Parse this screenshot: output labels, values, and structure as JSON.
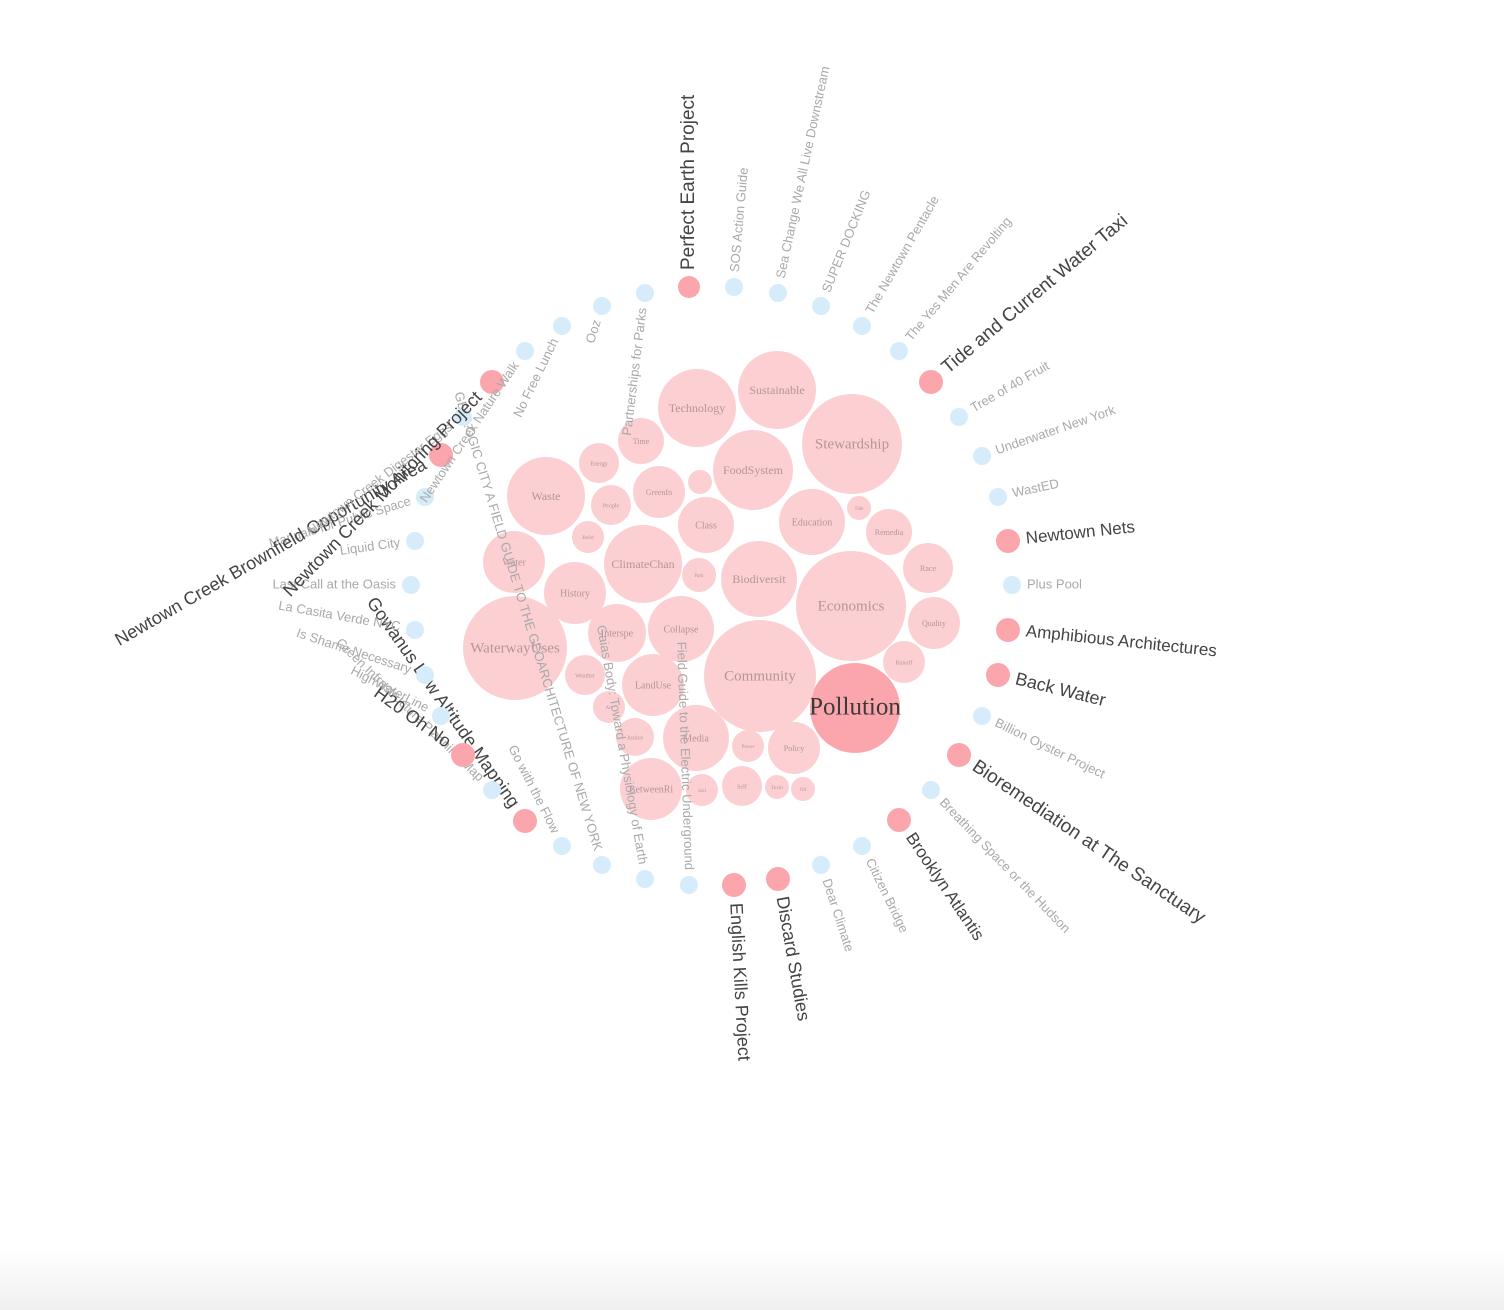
{
  "colors": {
    "bubble": "#fcd0d3",
    "bubble_highlight": "#fba6ad",
    "bubble_text": "#b69498",
    "bubble_text_highlight": "#3a3a3a",
    "node_active": "#fba6ad",
    "node_inactive": "#d6ecfb",
    "label_active": "#444444",
    "label_inactive": "#a9a9a9"
  },
  "chart_data": {
    "type": "bubble-radial",
    "title": "",
    "bubbles": [
      {
        "label": "Pollution",
        "highlighted": true
      },
      {
        "label": "Community"
      },
      {
        "label": "Economics"
      },
      {
        "label": "WaterwayUses"
      },
      {
        "label": "Stewardship"
      },
      {
        "label": "Technology"
      },
      {
        "label": "Sustainable"
      },
      {
        "label": "FoodSystem"
      },
      {
        "label": "ClimateChan"
      },
      {
        "label": "Education"
      },
      {
        "label": "Biodiversit"
      },
      {
        "label": "Waste"
      },
      {
        "label": "Media"
      },
      {
        "label": "Water"
      },
      {
        "label": "Collapse"
      },
      {
        "label": "History"
      },
      {
        "label": "BetweenRi"
      },
      {
        "label": "LandUse"
      },
      {
        "label": "Interspe"
      },
      {
        "label": "Class"
      },
      {
        "label": "Quality"
      },
      {
        "label": "GreenIn"
      },
      {
        "label": "Race"
      },
      {
        "label": "Policy"
      },
      {
        "label": "Time"
      },
      {
        "label": "Remedia"
      },
      {
        "label": "Runoff"
      },
      {
        "label": "Weather"
      },
      {
        "label": "People"
      },
      {
        "label": "Energy"
      },
      {
        "label": "Justice"
      },
      {
        "label": "Self"
      },
      {
        "label": "Art"
      },
      {
        "label": "Power"
      },
      {
        "label": "Build"
      },
      {
        "label": "Park"
      },
      {
        "label": "Soil"
      },
      {
        "label": "Toxin"
      },
      {
        "label": "Tide"
      },
      {
        "label": "Oil"
      },
      {
        "label": ""
      },
      {
        "label": "Air"
      }
    ],
    "projects": [
      {
        "name": "Perfect Earth Project",
        "active": true
      },
      {
        "name": "SOS Action Guide",
        "active": false
      },
      {
        "name": "Sea Change We All Live Downstream",
        "active": false
      },
      {
        "name": "SUPER DOCKING",
        "active": false
      },
      {
        "name": "The Newtown Pentacle",
        "active": false
      },
      {
        "name": "The Yes Men Are Revolting",
        "active": false
      },
      {
        "name": "Tide and Current Water Taxi",
        "active": true
      },
      {
        "name": "Tree of 40 Fruit",
        "active": false
      },
      {
        "name": "Underwater New York",
        "active": false
      },
      {
        "name": "WastED",
        "active": false
      },
      {
        "name": "Newtown Nets",
        "active": true
      },
      {
        "name": "Plus Pool",
        "active": false
      },
      {
        "name": "Amphibious Architectures",
        "active": true
      },
      {
        "name": "Back Water",
        "active": true
      },
      {
        "name": "Billion Oyster Project",
        "active": false
      },
      {
        "name": "Bioremediation at The Sanctuary",
        "active": true
      },
      {
        "name": "Breathing Space or the Hudson",
        "active": false
      },
      {
        "name": "Brooklyn Atlantis",
        "active": true
      },
      {
        "name": "Citizen Bridge",
        "active": false
      },
      {
        "name": "Dear Climate",
        "active": false
      },
      {
        "name": "Discard Studies",
        "active": true
      },
      {
        "name": "English Kills Project",
        "active": true
      },
      {
        "name": "Field Guide to the Electric Underground",
        "active": false
      },
      {
        "name": "Gaias Body: Toward a Physiology of Earth",
        "active": false
      },
      {
        "name": "GEOLOGIC CITY A FIELD GUIDE TO THE GEOARCHITECTURE OF NEW YORK",
        "active": false
      },
      {
        "name": "Go with the Flow",
        "active": false
      },
      {
        "name": "Gowanus Low Altitude Mapping",
        "active": true
      },
      {
        "name": "Green Infrastructure Planning Map",
        "active": false
      },
      {
        "name": "H20 Oh No",
        "active": true
      },
      {
        "name": "HighWaterLine",
        "active": false
      },
      {
        "name": "Is Shame Necessary",
        "active": false
      },
      {
        "name": "La Casita Verde NYC",
        "active": false
      },
      {
        "name": "Last Call at the Oasis",
        "active": false
      },
      {
        "name": "Liquid City",
        "active": false
      },
      {
        "name": "Manuals for Public Space",
        "active": false
      },
      {
        "name": "Newtown Creek Brownfield Opportunity Area",
        "active": true
      },
      {
        "name": "Newtown Creek Digester Eggs",
        "active": false
      },
      {
        "name": "Newtown Creek Monitoring Project",
        "active": true
      },
      {
        "name": "Newtown Creek Nature Walk",
        "active": false
      },
      {
        "name": "No Free Lunch",
        "active": false
      },
      {
        "name": "Ooz",
        "active": false
      },
      {
        "name": "Partnerships for Parks",
        "active": false
      }
    ]
  }
}
